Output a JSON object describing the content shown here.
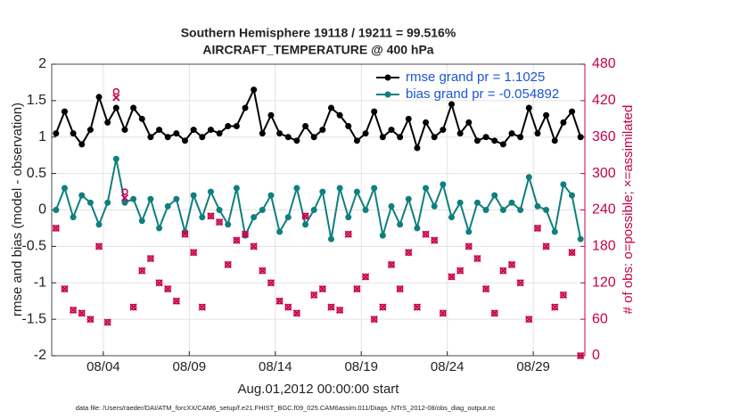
{
  "chart_data": {
    "type": "line",
    "title": "Southern Hemisphere 19118 / 19211 = 99.516%",
    "subtitle": "AIRCRAFT_TEMPERATURE @ 400 hPa",
    "y_label": "rmse and bias (model - observation)",
    "y2_label": "# of obs: o=possible; ×=assimilated",
    "x_label": "Aug.01,2012 00:00:00 start",
    "footnote": "data file: /Users/raeder/DAI/ATM_forcXX/CAM6_setup/f.e21.FHIST_BGC.f09_025.CAM6assim.011/Diags_NTrS_2012-08/obs_diag_output.nc",
    "x": [
      0.25,
      0.75,
      1.25,
      1.75,
      2.25,
      2.75,
      3.25,
      3.75,
      4.25,
      4.75,
      5.25,
      5.75,
      6.25,
      6.75,
      7.25,
      7.75,
      8.25,
      8.75,
      9.25,
      9.75,
      10.25,
      10.75,
      11.25,
      11.75,
      12.25,
      12.75,
      13.25,
      13.75,
      14.25,
      14.75,
      15.25,
      15.75,
      16.25,
      16.75,
      17.25,
      17.75,
      18.25,
      18.75,
      19.25,
      19.75,
      20.25,
      20.75,
      21.25,
      21.75,
      22.25,
      22.75,
      23.25,
      23.75,
      24.25,
      24.75,
      25.25,
      25.75,
      26.25,
      26.75,
      27.25,
      27.75,
      28.25,
      28.75,
      29.25,
      29.75,
      30.25,
      30.75
    ],
    "xlim": [
      0,
      31
    ],
    "xticks": [
      {
        "value": 3,
        "label": "08/04"
      },
      {
        "value": 8,
        "label": "08/09"
      },
      {
        "value": 13,
        "label": "08/14"
      },
      {
        "value": 18,
        "label": "08/19"
      },
      {
        "value": 23,
        "label": "08/24"
      },
      {
        "value": 28,
        "label": "08/29"
      }
    ],
    "ylim": [
      -2,
      2
    ],
    "yticks": [
      -2,
      -1.5,
      -1,
      -0.5,
      0,
      0.5,
      1,
      1.5,
      2
    ],
    "y2lim": [
      0,
      480
    ],
    "y2ticks": [
      0,
      60,
      120,
      180,
      240,
      300,
      360,
      420,
      480
    ],
    "grid": true,
    "legend": "upper right",
    "series": [
      {
        "name": "rmse grand pr = 1.1025",
        "color": "#000000",
        "marker": "dot",
        "values": [
          1.05,
          1.35,
          1.05,
          0.9,
          1.1,
          1.55,
          1.2,
          1.4,
          1.1,
          1.4,
          1.25,
          1.0,
          1.1,
          1.0,
          1.05,
          0.95,
          1.1,
          1.0,
          1.1,
          1.05,
          1.15,
          1.15,
          1.4,
          1.65,
          1.05,
          1.3,
          1.05,
          1.0,
          0.95,
          1.15,
          1.0,
          1.1,
          1.4,
          1.3,
          1.15,
          0.95,
          1.05,
          1.35,
          1.0,
          1.1,
          1.0,
          1.25,
          0.85,
          1.2,
          1.0,
          1.1,
          1.45,
          1.05,
          1.2,
          0.95,
          1.0,
          0.95,
          0.9,
          1.05,
          1.0,
          1.4,
          1.05,
          1.3,
          0.95,
          1.2,
          1.35,
          1.0
        ]
      },
      {
        "name": "bias grand pr = -0.054892",
        "color": "#0f7f7f",
        "marker": "dot",
        "values": [
          0,
          0.3,
          -0.1,
          0.2,
          0.1,
          -0.2,
          0.1,
          0.7,
          0.1,
          0.15,
          -0.15,
          0.15,
          -0.25,
          0.05,
          0.15,
          -0.3,
          0.2,
          -0.1,
          0.25,
          0,
          -0.2,
          0.3,
          -0.35,
          -0.1,
          0,
          0.2,
          -0.3,
          -0.1,
          0.3,
          -0.2,
          0,
          0.25,
          -0.4,
          0.3,
          -0.1,
          0.25,
          0,
          0.3,
          -0.35,
          0.05,
          -0.2,
          0.15,
          -0.25,
          0.3,
          0.05,
          0.35,
          -0.1,
          0.1,
          -0.3,
          0.1,
          0,
          0.2,
          0,
          0.1,
          0,
          0.45,
          0.05,
          0,
          -0.3,
          0.35,
          0.2,
          -0.4
        ]
      },
      {
        "color": "#c8004c",
        "marker": "o",
        "axis": "y2",
        "values": [
          210,
          110,
          75,
          70,
          60,
          180,
          55,
          435,
          270,
          80,
          140,
          160,
          120,
          110,
          90,
          200,
          170,
          80,
          230,
          220,
          150,
          190,
          200,
          180,
          140,
          120,
          90,
          80,
          70,
          230,
          100,
          110,
          80,
          75,
          200,
          110,
          130,
          60,
          80,
          150,
          110,
          170,
          80,
          200,
          190,
          70,
          130,
          140,
          180,
          160,
          110,
          70,
          140,
          150,
          120,
          60,
          210,
          180,
          80,
          100,
          170,
          0
        ]
      },
      {
        "color": "#c8004c",
        "marker": "x",
        "axis": "y2",
        "values": [
          210,
          110,
          75,
          70,
          60,
          180,
          55,
          425,
          260,
          80,
          140,
          160,
          120,
          110,
          90,
          200,
          170,
          80,
          230,
          220,
          150,
          190,
          200,
          180,
          140,
          120,
          90,
          80,
          70,
          230,
          100,
          110,
          80,
          75,
          200,
          110,
          130,
          60,
          80,
          150,
          110,
          170,
          80,
          200,
          190,
          70,
          130,
          140,
          180,
          160,
          110,
          70,
          140,
          150,
          120,
          60,
          210,
          180,
          80,
          100,
          170,
          0
        ]
      }
    ]
  }
}
